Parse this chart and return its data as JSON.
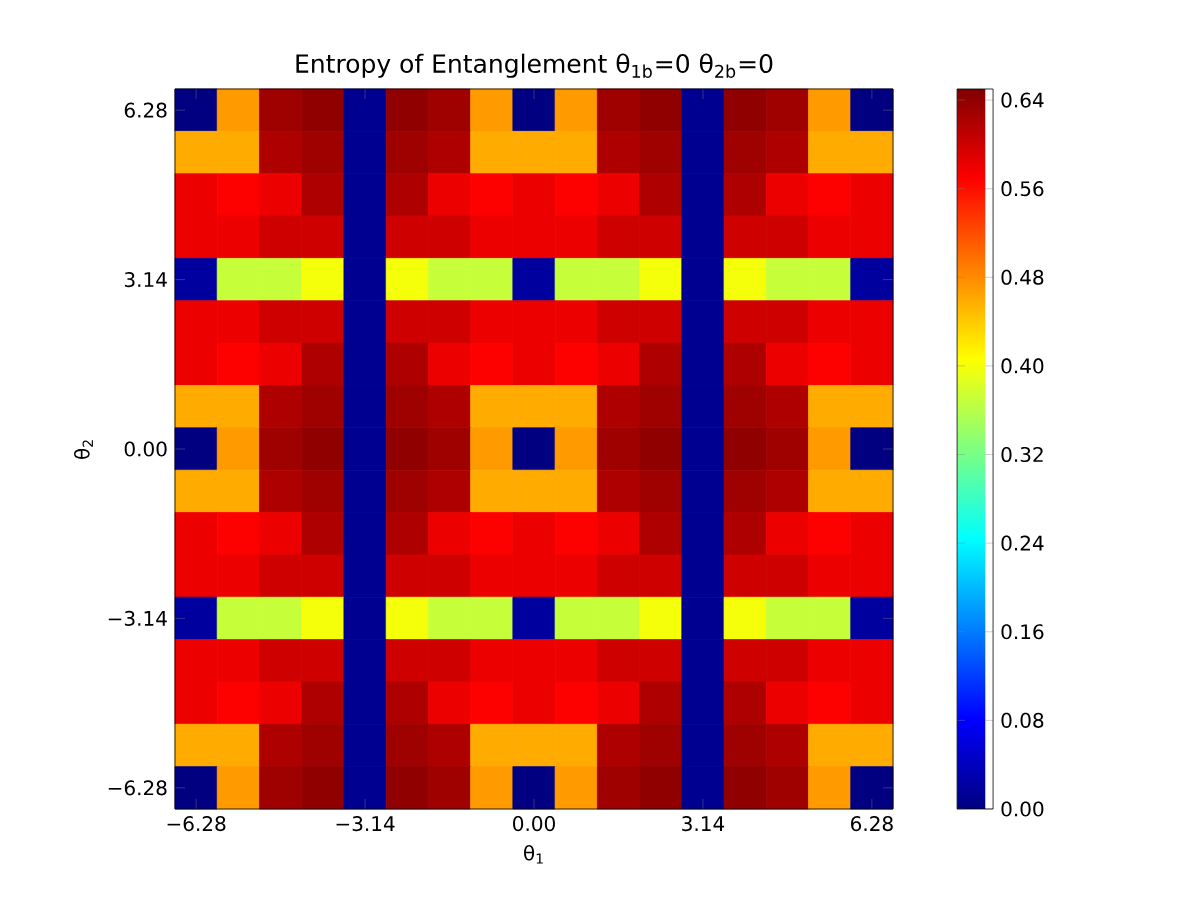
{
  "chart_data": {
    "type": "heatmap",
    "title": "Entropy of Entanglement θ$_{1b}$=0 θ$_{2b}$=0",
    "xlabel": "θ$_{1}$",
    "ylabel": "θ$_{2}$",
    "categories": [
      "−6.28",
      null,
      null,
      null,
      "−3.14",
      null,
      null,
      null,
      "0.00",
      null,
      null,
      null,
      "3.14",
      null,
      null,
      null,
      "6.28"
    ],
    "y_categories": [
      "6.28",
      null,
      null,
      null,
      "3.14",
      null,
      null,
      null,
      "0.00",
      null,
      null,
      null,
      "−3.14",
      null,
      null,
      null,
      "−6.28"
    ],
    "clim": [
      0,
      0.65
    ],
    "cticks": [
      {
        "value": 0,
        "label": "0.00"
      },
      {
        "value": 0.08,
        "label": "0.08"
      },
      {
        "value": 0.16,
        "label": "0.16"
      },
      {
        "value": 0.24,
        "label": "0.24"
      },
      {
        "value": 0.32,
        "label": "0.32"
      },
      {
        "value": 0.4,
        "label": "0.40"
      },
      {
        "value": 0.48,
        "label": "0.48"
      },
      {
        "value": 0.56,
        "label": "0.56"
      },
      {
        "value": 0.64,
        "label": "0.64"
      }
    ],
    "cells": [
      [
        0,
        0.47,
        0.63,
        0.64,
        0.01,
        0.64,
        0.63,
        0.47,
        0,
        0.47,
        0.63,
        0.64,
        0.01,
        0.64,
        0.63,
        0.47,
        0
      ],
      [
        0.46,
        0.46,
        0.62,
        0.63,
        0.01,
        0.63,
        0.62,
        0.46,
        0.46,
        0.46,
        0.62,
        0.63,
        0.01,
        0.63,
        0.62,
        0.46,
        0.46
      ],
      [
        0.58,
        0.57,
        0.58,
        0.62,
        0.01,
        0.62,
        0.58,
        0.57,
        0.58,
        0.57,
        0.58,
        0.62,
        0.01,
        0.62,
        0.58,
        0.57,
        0.58
      ],
      [
        0.58,
        0.58,
        0.6,
        0.6,
        0.01,
        0.6,
        0.6,
        0.58,
        0.58,
        0.58,
        0.6,
        0.6,
        0.01,
        0.6,
        0.6,
        0.58,
        0.58
      ],
      [
        0.02,
        0.37,
        0.37,
        0.4,
        0.01,
        0.4,
        0.37,
        0.37,
        0.02,
        0.37,
        0.37,
        0.4,
        0.01,
        0.4,
        0.37,
        0.37,
        0.02
      ],
      [
        0.58,
        0.58,
        0.6,
        0.6,
        0.01,
        0.6,
        0.6,
        0.58,
        0.58,
        0.58,
        0.6,
        0.6,
        0.01,
        0.6,
        0.6,
        0.58,
        0.58
      ],
      [
        0.58,
        0.57,
        0.58,
        0.62,
        0.01,
        0.62,
        0.58,
        0.57,
        0.58,
        0.57,
        0.58,
        0.62,
        0.01,
        0.62,
        0.58,
        0.57,
        0.58
      ],
      [
        0.46,
        0.46,
        0.62,
        0.63,
        0.01,
        0.63,
        0.62,
        0.46,
        0.46,
        0.46,
        0.62,
        0.63,
        0.01,
        0.63,
        0.62,
        0.46,
        0.46
      ],
      [
        0,
        0.47,
        0.63,
        0.64,
        0.01,
        0.64,
        0.63,
        0.47,
        0,
        0.47,
        0.63,
        0.64,
        0.01,
        0.64,
        0.63,
        0.47,
        0
      ],
      [
        0.46,
        0.46,
        0.62,
        0.63,
        0.01,
        0.63,
        0.62,
        0.46,
        0.46,
        0.46,
        0.62,
        0.63,
        0.01,
        0.63,
        0.62,
        0.46,
        0.46
      ],
      [
        0.58,
        0.57,
        0.58,
        0.62,
        0.01,
        0.62,
        0.58,
        0.57,
        0.58,
        0.57,
        0.58,
        0.62,
        0.01,
        0.62,
        0.58,
        0.57,
        0.58
      ],
      [
        0.58,
        0.58,
        0.6,
        0.6,
        0.01,
        0.6,
        0.6,
        0.58,
        0.58,
        0.58,
        0.6,
        0.6,
        0.01,
        0.6,
        0.6,
        0.58,
        0.58
      ],
      [
        0.02,
        0.37,
        0.37,
        0.4,
        0.01,
        0.4,
        0.37,
        0.37,
        0.02,
        0.37,
        0.37,
        0.4,
        0.01,
        0.4,
        0.37,
        0.37,
        0.02
      ],
      [
        0.58,
        0.58,
        0.6,
        0.6,
        0.01,
        0.6,
        0.6,
        0.58,
        0.58,
        0.58,
        0.6,
        0.6,
        0.01,
        0.6,
        0.6,
        0.58,
        0.58
      ],
      [
        0.58,
        0.57,
        0.58,
        0.62,
        0.01,
        0.62,
        0.58,
        0.57,
        0.58,
        0.57,
        0.58,
        0.62,
        0.01,
        0.62,
        0.58,
        0.57,
        0.58
      ],
      [
        0.46,
        0.46,
        0.62,
        0.63,
        0.01,
        0.63,
        0.62,
        0.46,
        0.46,
        0.46,
        0.62,
        0.63,
        0.01,
        0.63,
        0.62,
        0.46,
        0.46
      ],
      [
        0,
        0.47,
        0.63,
        0.64,
        0.01,
        0.64,
        0.63,
        0.47,
        0,
        0.47,
        0.63,
        0.64,
        0.01,
        0.64,
        0.63,
        0.47,
        0
      ]
    ]
  }
}
